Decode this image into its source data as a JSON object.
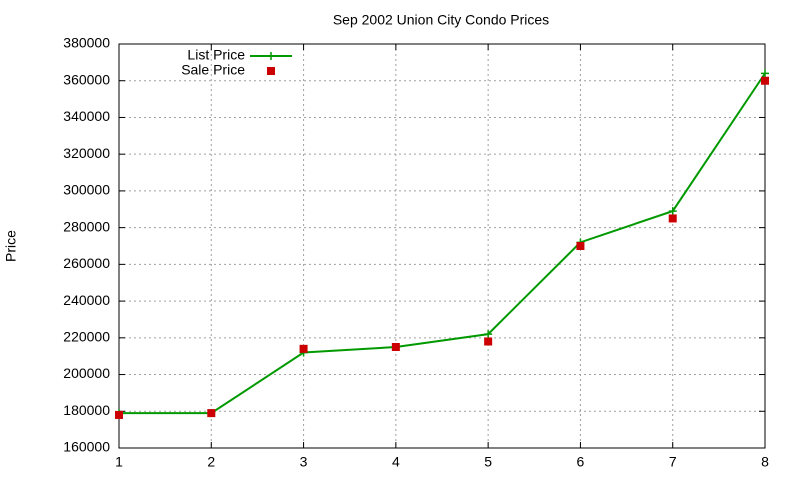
{
  "chart_data": {
    "type": "line",
    "title": "Sep 2002 Union City Condo Prices",
    "y_label": "Price",
    "x": [
      1,
      2,
      3,
      4,
      5,
      6,
      7,
      8
    ],
    "series": [
      {
        "name": "List Price",
        "color": "#009900",
        "line": true,
        "marker": "plus",
        "values": [
          179000,
          179000,
          212000,
          215000,
          222000,
          272000,
          289000,
          364000
        ]
      },
      {
        "name": "Sale Price",
        "color": "#cc0000",
        "line": false,
        "marker": "square",
        "values": [
          178000,
          179000,
          214000,
          215000,
          218000,
          270000,
          285000,
          360000
        ]
      }
    ],
    "xlim": [
      1,
      8
    ],
    "xticks": [
      1,
      2,
      3,
      4,
      5,
      6,
      7,
      8
    ],
    "ylim": [
      160000,
      380000
    ],
    "yticks": [
      160000,
      180000,
      200000,
      220000,
      240000,
      260000,
      280000,
      300000,
      320000,
      340000,
      360000,
      380000
    ],
    "grid": true,
    "legend": "top-left"
  }
}
